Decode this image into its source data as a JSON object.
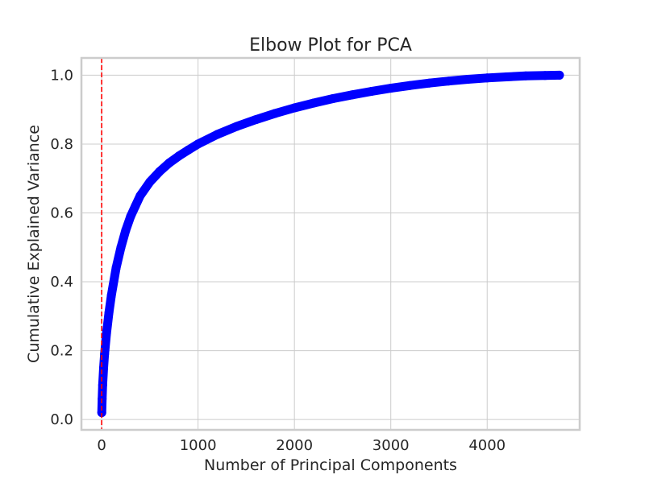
{
  "chart_data": {
    "type": "line",
    "title": "Elbow Plot for PCA",
    "xlabel": "Number of Principal Components",
    "ylabel": "Cumulative Explained Variance",
    "xlim": [
      -210,
      4960
    ],
    "ylim": [
      -0.03,
      1.05
    ],
    "xticks": [
      0,
      1000,
      2000,
      3000,
      4000
    ],
    "yticks": [
      0.0,
      0.2,
      0.4,
      0.6,
      0.8,
      1.0
    ],
    "ytick_labels": [
      "0.0",
      "0.2",
      "0.4",
      "0.6",
      "0.8",
      "1.0"
    ],
    "grid": true,
    "marker": "circle",
    "series": [
      {
        "color": "#0000ff",
        "x": [
          1,
          5,
          10,
          20,
          30,
          50,
          75,
          100,
          150,
          200,
          250,
          300,
          350,
          400,
          500,
          600,
          700,
          800,
          900,
          1000,
          1200,
          1400,
          1600,
          1800,
          2000,
          2200,
          2400,
          2600,
          2800,
          3000,
          3200,
          3400,
          3600,
          3800,
          4000,
          4200,
          4400,
          4600,
          4750
        ],
        "y": [
          0.02,
          0.06,
          0.1,
          0.15,
          0.19,
          0.25,
          0.31,
          0.36,
          0.44,
          0.5,
          0.55,
          0.59,
          0.62,
          0.65,
          0.69,
          0.72,
          0.745,
          0.765,
          0.783,
          0.8,
          0.828,
          0.851,
          0.871,
          0.889,
          0.905,
          0.919,
          0.932,
          0.943,
          0.953,
          0.962,
          0.97,
          0.977,
          0.983,
          0.988,
          0.992,
          0.995,
          0.998,
          0.999,
          1.0
        ]
      }
    ],
    "vline": {
      "x": 0,
      "color": "#ff0000",
      "style": "dashed"
    }
  }
}
